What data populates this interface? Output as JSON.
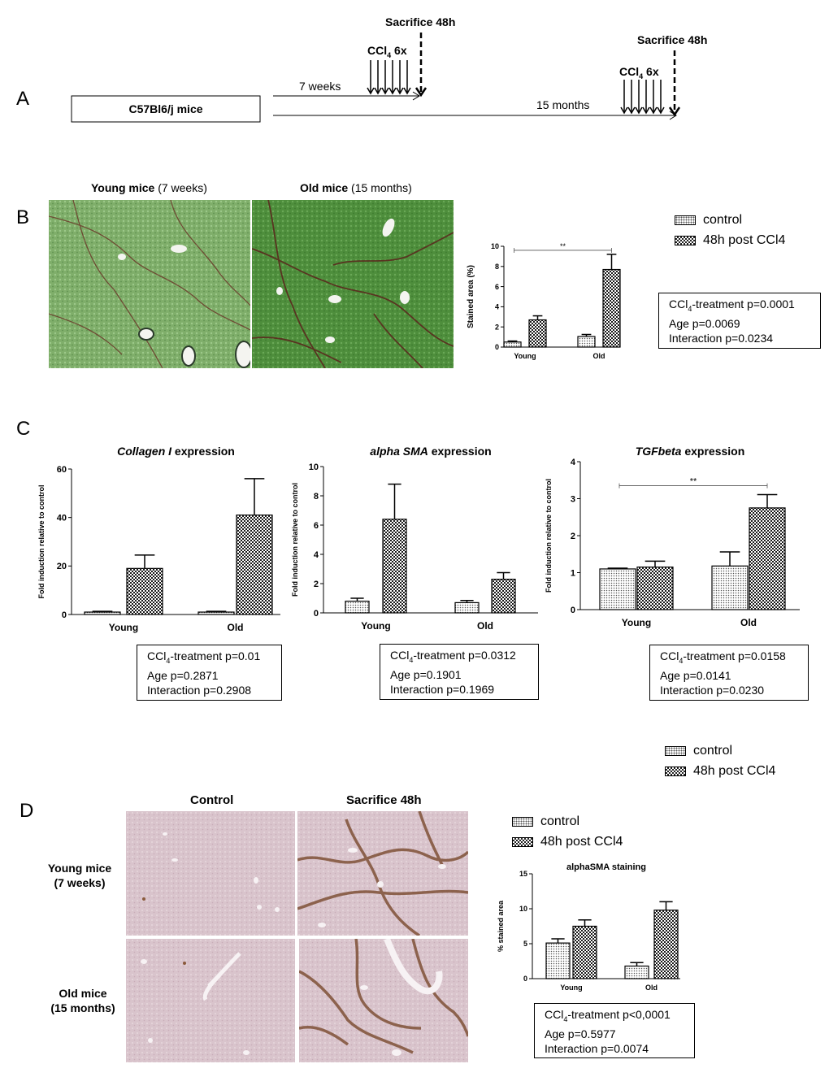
{
  "panels": {
    "a": "A",
    "b": "B",
    "c": "C",
    "d": "D"
  },
  "timeline": {
    "mice_label": "C57Bl6/j mice",
    "duration_young": "7 weeks",
    "duration_old": "15 months",
    "ccl4_young": {
      "base": "CCl",
      "sub": "4",
      "suffix": " 6x"
    },
    "ccl4_old": {
      "base": "CCl",
      "sub": "4",
      "suffix": " 6x"
    },
    "sacrifice_young": "Sacrifice 48h",
    "sacrifice_old": "Sacrifice 48h"
  },
  "panel_b": {
    "young_title_bold": "Young mice",
    "young_title_rest": " (7 weeks)",
    "old_title_bold": "Old mice",
    "old_title_rest": " (15 months)",
    "legend": {
      "control": "control",
      "treated": "48h post CCl4"
    },
    "stats": {
      "line1_base": "CCl",
      "line1_sub": "4",
      "line1_rest": "-treatment p=0.0001",
      "line2": "Age p=0.0069",
      "line3": "Interaction p=0.0234"
    }
  },
  "panel_c": {
    "legend": {
      "control": "control",
      "treated": "48h post CCl4"
    },
    "stats": [
      {
        "line1_base": "CCl",
        "line1_sub": "4",
        "line1_rest": "-treatment p=0.01",
        "line2": "Age p=0.2871",
        "line3": "Interaction p=0.2908"
      },
      {
        "line1_base": "CCl",
        "line1_sub": "4",
        "line1_rest": "-treatment p=0.0312",
        "line2": "Age p=0.1901",
        "line3": "Interaction p=0.1969"
      },
      {
        "line1_base": "CCl",
        "line1_sub": "4",
        "line1_rest": "-treatment p=0.0158",
        "line2": "Age p=0.0141",
        "line3": "Interaction p=0.0230"
      }
    ]
  },
  "panel_d": {
    "col_control": "Control",
    "col_sacrifice": "Sacrifice 48h",
    "row_young_line1": "Young mice",
    "row_young_line2": "(7 weeks)",
    "row_old_line1": "Old mice",
    "row_old_line2": "(15 months)",
    "legend": {
      "control": "control",
      "treated": "48h post CCl4"
    },
    "stats": {
      "line1_base": "CCl",
      "line1_sub": "4",
      "line1_rest": "-treatment p<0,0001",
      "line2": "Age p=0.5977",
      "line3": "Interaction p=0.0074"
    }
  },
  "chart_data": [
    {
      "id": "stained",
      "type": "bar",
      "title": "",
      "ylabel": "Stained area (%)",
      "ylim": [
        0,
        10
      ],
      "yticks": [
        0,
        2,
        4,
        6,
        8,
        10
      ],
      "categories": [
        "Young",
        "Old"
      ],
      "series": [
        {
          "values": [
            0.5,
            1.05
          ],
          "errors": [
            0.1,
            0.2
          ]
        },
        {
          "values": [
            2.7,
            7.7
          ],
          "errors": [
            0.4,
            1.5
          ]
        }
      ],
      "significance": {
        "from": 0,
        "to": 1,
        "y": 9.6,
        "label": "**"
      }
    },
    {
      "id": "collagen",
      "type": "bar",
      "title_italic": "Collagen I",
      "title_rest": " expression",
      "ylabel": "Fold induction relative to control",
      "ylim": [
        0,
        60
      ],
      "yticks": [
        0,
        20,
        40,
        60
      ],
      "categories": [
        "Young",
        "Old"
      ],
      "series": [
        {
          "values": [
            1,
            1
          ],
          "errors": [
            0.3,
            0.3
          ]
        },
        {
          "values": [
            19,
            41
          ],
          "errors": [
            5.5,
            15
          ]
        }
      ]
    },
    {
      "id": "asma",
      "type": "bar",
      "title_italic": "alpha SMA",
      "title_rest": " expression",
      "ylabel": "Fold induction relative to control",
      "ylim": [
        0,
        10
      ],
      "yticks": [
        0,
        2,
        4,
        6,
        8,
        10
      ],
      "categories": [
        "Young",
        "Old"
      ],
      "series": [
        {
          "values": [
            0.8,
            0.7
          ],
          "errors": [
            0.2,
            0.15
          ]
        },
        {
          "values": [
            6.4,
            2.3
          ],
          "errors": [
            2.4,
            0.45
          ]
        }
      ]
    },
    {
      "id": "tgfb",
      "type": "bar",
      "title_italic": "TGFbeta",
      "title_rest": " expression",
      "ylabel": "Fold induction relative to control",
      "ylim": [
        0,
        4
      ],
      "yticks": [
        0,
        1,
        2,
        3,
        4
      ],
      "categories": [
        "Young",
        "Old"
      ],
      "series": [
        {
          "values": [
            1.1,
            1.18
          ],
          "errors": [
            0.02,
            0.38
          ]
        },
        {
          "values": [
            1.15,
            2.75
          ],
          "errors": [
            0.16,
            0.36
          ]
        }
      ],
      "significance": {
        "from": 0,
        "to": 1,
        "y": 3.35,
        "label": "**"
      }
    },
    {
      "id": "sma_stain",
      "type": "bar",
      "title": "alphaSMA staining",
      "ylabel": "% stained area",
      "ylim": [
        0,
        15
      ],
      "yticks": [
        0,
        5,
        10,
        15
      ],
      "categories": [
        "Young",
        "Old"
      ],
      "series": [
        {
          "values": [
            5.1,
            1.8
          ],
          "errors": [
            0.6,
            0.5
          ]
        },
        {
          "values": [
            7.5,
            9.8
          ],
          "errors": [
            0.9,
            1.2
          ]
        }
      ]
    }
  ]
}
